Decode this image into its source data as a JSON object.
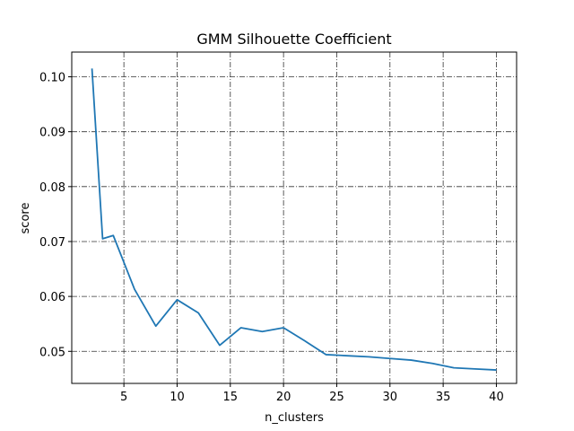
{
  "chart_data": {
    "type": "line",
    "title": "GMM Silhouette Coefficient",
    "xlabel": "n_clusters",
    "ylabel": "score",
    "xlim": [
      0.1,
      41.9
    ],
    "ylim": [
      0.04416,
      0.1045
    ],
    "xticks": [
      5,
      10,
      15,
      20,
      25,
      30,
      35,
      40
    ],
    "yticks": [
      0.05,
      0.06,
      0.07,
      0.08,
      0.09,
      0.1
    ],
    "ytick_labels": [
      "0.05",
      "0.06",
      "0.07",
      "0.08",
      "0.09",
      "0.10"
    ],
    "grid": true,
    "grid_style": "dashdot",
    "line_color": "#1f77b4",
    "series": [
      {
        "x": [
          2,
          3,
          4,
          5,
          6,
          8,
          10,
          12,
          14,
          16,
          18,
          20,
          22,
          24,
          26,
          28,
          30,
          32,
          34,
          36,
          38,
          40
        ],
        "values": [
          0.1015,
          0.0705,
          0.0711,
          0.0662,
          0.0613,
          0.0546,
          0.0594,
          0.057,
          0.0511,
          0.0543,
          0.0536,
          0.0543,
          0.0519,
          0.0494,
          0.0492,
          0.049,
          0.0487,
          0.0484,
          0.0478,
          0.047,
          0.0468,
          0.0466
        ]
      }
    ]
  }
}
